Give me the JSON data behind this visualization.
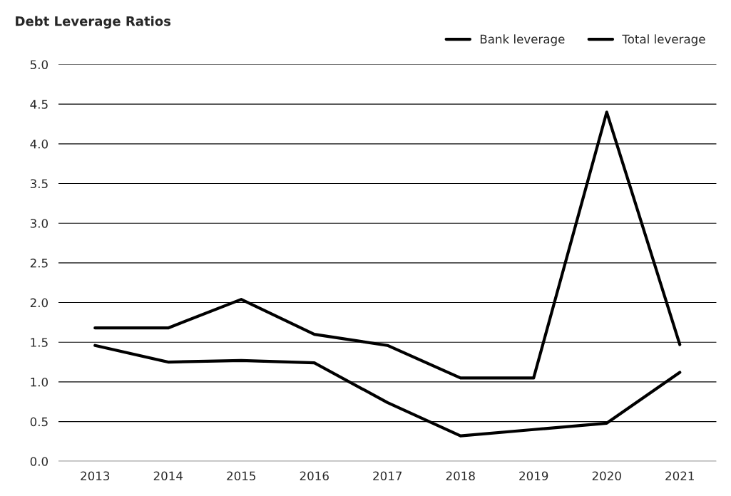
{
  "chart_data": {
    "type": "line",
    "title": "Debt Leverage Ratios",
    "categories": [
      "2013",
      "2014",
      "2015",
      "2016",
      "2017",
      "2018",
      "2019",
      "2020",
      "2021"
    ],
    "series": [
      {
        "name": "Bank leverage",
        "color": "#000000",
        "values": [
          1.46,
          1.25,
          1.27,
          1.24,
          0.74,
          0.32,
          0.4,
          0.48,
          1.12
        ]
      },
      {
        "name": "Total leverage",
        "color": "#000000",
        "values": [
          1.68,
          1.68,
          2.04,
          1.6,
          1.46,
          1.05,
          1.05,
          4.4,
          1.47
        ]
      }
    ],
    "ylim": [
      0,
      5.0
    ],
    "yticks": [
      {
        "value": 0,
        "label": "0.0"
      },
      0.5,
      {
        "value": 1,
        "label": "1.0"
      },
      1.5,
      {
        "value": 2,
        "label": "2.0"
      },
      2.5,
      {
        "value": 3,
        "label": "3.0"
      },
      3.5,
      {
        "value": 4,
        "label": "4.0"
      },
      4.5,
      {
        "value": 5,
        "label": "5.0"
      }
    ],
    "grid": "y",
    "legend": "top right",
    "marker": "none",
    "line_style": "solid"
  }
}
